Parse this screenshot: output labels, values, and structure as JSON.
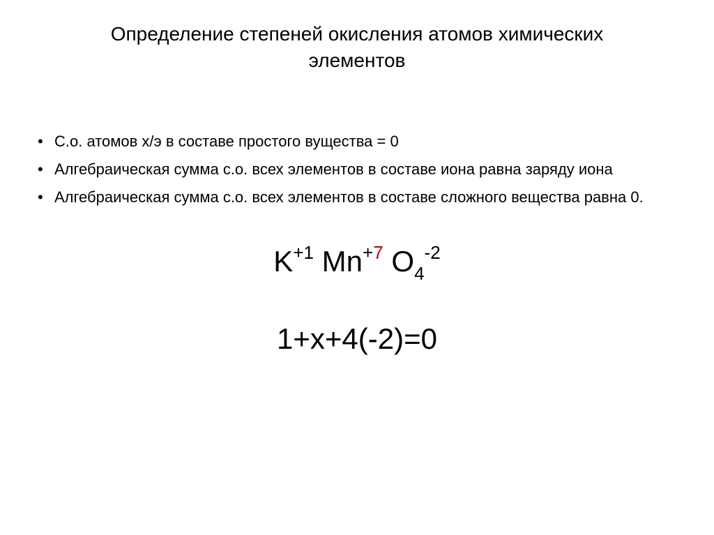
{
  "title": "Определение степеней окисления атомов химических элементов",
  "bullets": [
    "С.о. атомов х/э в составе простого вущества = 0",
    "Алгебраическая сумма с.о. всех элементов в составе иона равна заряду иона",
    "Алгебраическая сумма с.о. всех элементов в составе сложного вещества равна 0."
  ],
  "formula": {
    "elements": [
      {
        "symbol": "K",
        "sup_prefix": "+1",
        "sup_highlight": "",
        "sub": ""
      },
      {
        "symbol": "Mn",
        "sup_prefix": "+",
        "sup_highlight": "7",
        "sub": ""
      },
      {
        "symbol": "O",
        "sup_prefix": "",
        "sup_highlight": "",
        "sub": "4",
        "sup_suffix": "-2"
      }
    ],
    "highlight_color": "#c00000"
  },
  "equation": "1+x+4(-2)=0",
  "colors": {
    "text": "#000000",
    "background": "#ffffff",
    "highlight": "#c00000"
  },
  "typography": {
    "title_fontsize": 28,
    "body_fontsize": 22,
    "formula_fontsize": 42,
    "font_family": "Arial"
  }
}
